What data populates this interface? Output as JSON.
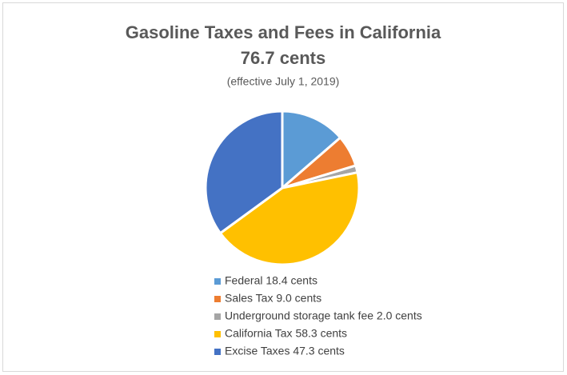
{
  "chart_data": {
    "type": "pie",
    "title": "Gasoline Taxes and Fees in California",
    "subtitle": "76.7 cents",
    "note": "(effective July 1, 2019)",
    "categories": [
      "Federal 18.4 cents",
      "Sales Tax 9.0 cents",
      "Underground storage tank fee 2.0 cents",
      "California Tax 58.3 cents",
      "Excise Taxes 47.3 cents"
    ],
    "values": [
      18.4,
      9.0,
      2.0,
      58.3,
      47.3
    ],
    "colors": [
      "#5b9bd5",
      "#ed7d31",
      "#a5a5a5",
      "#ffc000",
      "#4472c4"
    ],
    "legend": "bottom"
  }
}
